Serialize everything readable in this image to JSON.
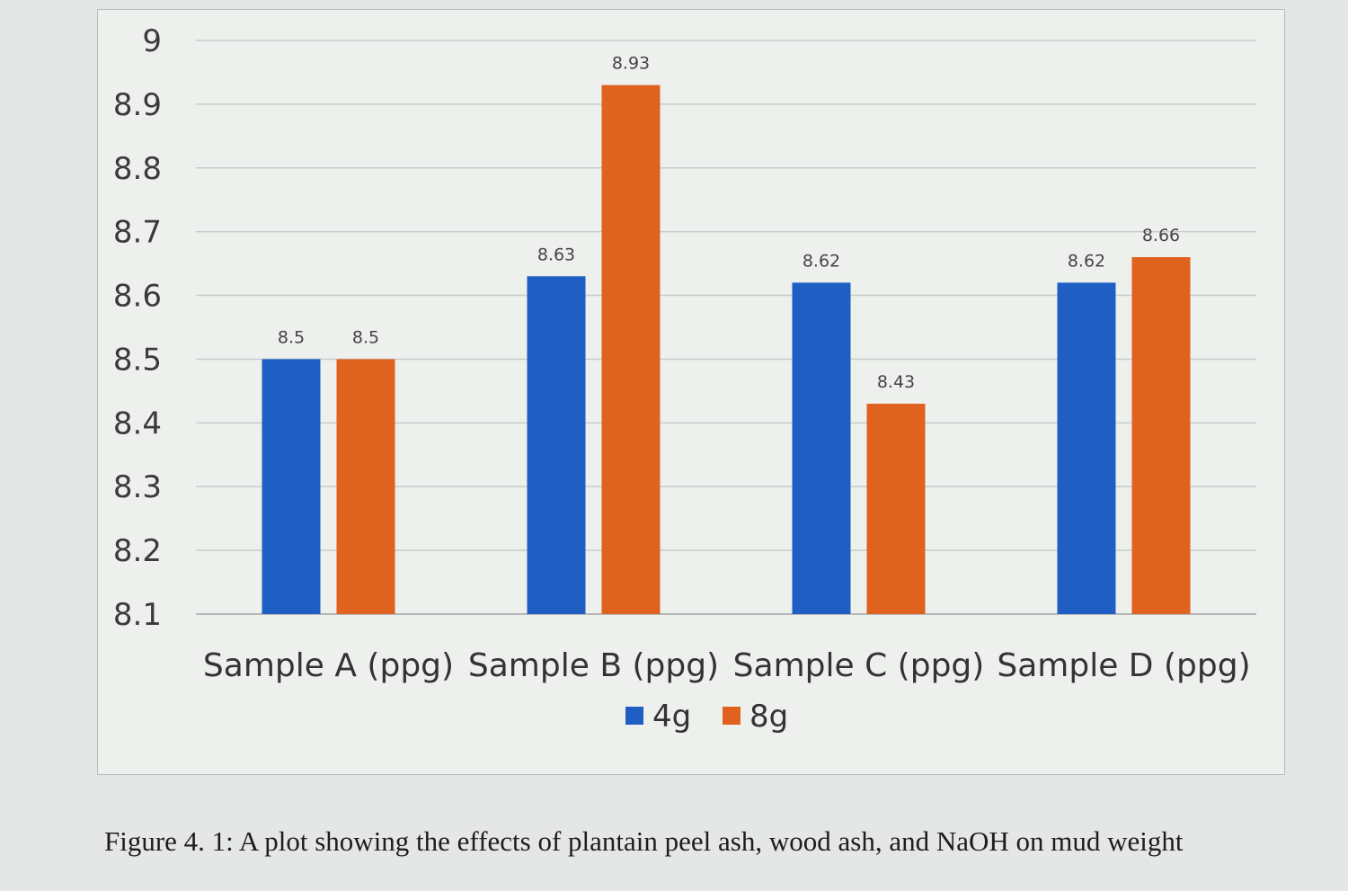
{
  "chart_data": {
    "type": "bar",
    "categories": [
      "Sample A (ppg)",
      "Sample B (ppg)",
      "Sample C (ppg)",
      "Sample D (ppg)"
    ],
    "series": [
      {
        "name": "4g",
        "values": [
          8.5,
          8.63,
          8.62,
          8.62
        ],
        "color": "#1f5fc4"
      },
      {
        "name": "8g",
        "values": [
          8.5,
          8.93,
          8.43,
          8.66
        ],
        "color": "#e0621f"
      }
    ],
    "ylim": [
      8.1,
      9.0
    ],
    "yticks": [
      "9",
      "8.9",
      "8.8",
      "8.7",
      "8.6",
      "8.5",
      "8.4",
      "8.3",
      "8.2",
      "8.1"
    ],
    "grid": true,
    "legend_position": "bottom",
    "title": "",
    "xlabel": "",
    "ylabel": ""
  },
  "caption": "Figure 4. 1: A plot showing the effects of plantain peel ash, wood ash, and NaOH on mud weight"
}
